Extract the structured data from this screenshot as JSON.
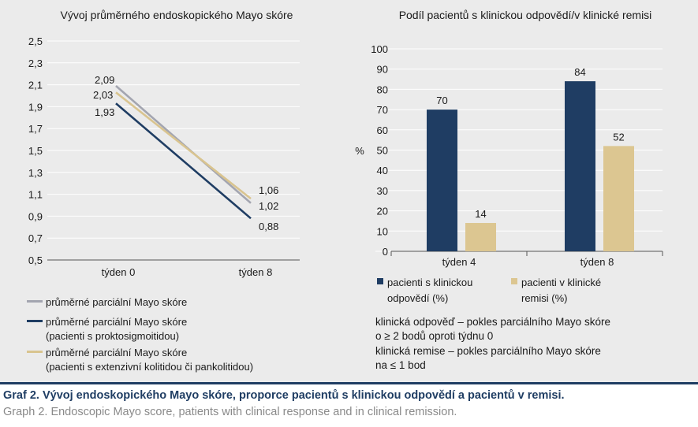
{
  "chart_data": [
    {
      "type": "line",
      "title": "Vývoj průměrného endoskopického Mayo skóre",
      "categories": [
        "týden 0",
        "týden 8"
      ],
      "ylim": [
        0.5,
        2.5
      ],
      "yticks": [
        "0,5",
        "0,7",
        "0,9",
        "1,1",
        "1,3",
        "1,5",
        "1,7",
        "1,9",
        "2,1",
        "2,3",
        "2,5"
      ],
      "series": [
        {
          "name": "průměrné parciální Mayo skóre",
          "values": [
            2.09,
            1.02
          ],
          "labels": [
            "2,09",
            "1,02"
          ],
          "color": "#a3a5b0"
        },
        {
          "name": "průměrné parciální Mayo skóre",
          "name2": "(pacienti s proktosigmoitidou)",
          "values": [
            1.93,
            0.88
          ],
          "labels": [
            "1,93",
            "0,88"
          ],
          "color": "#1f3d63"
        },
        {
          "name": "průměrné parciální Mayo skóre",
          "name2": "(pacienti s extenzivní kolitidou či pankolitidou)",
          "values": [
            2.03,
            1.06
          ],
          "labels": [
            "2,03",
            "1,06"
          ],
          "color": "#d9c48f"
        }
      ],
      "grid": true
    },
    {
      "type": "bar",
      "title": "Podíl pacientů s klinickou odpovědí/v klinické remisi",
      "ylabel": "%",
      "categories": [
        "týden 4",
        "týden 8"
      ],
      "ylim": [
        0,
        100
      ],
      "yticks": [
        "0",
        "10",
        "20",
        "30",
        "40",
        "50",
        "60",
        "70",
        "80",
        "90",
        "100"
      ],
      "series": [
        {
          "name": "pacienti s klinickou",
          "name2": "odpovědí (%)",
          "values": [
            70,
            84
          ],
          "labels": [
            "70",
            "84"
          ],
          "color": "#1f3d63"
        },
        {
          "name": "pacienti v klinické",
          "name2": "remisi (%)",
          "values": [
            14,
            52
          ],
          "labels": [
            "14",
            "52"
          ],
          "color": "#dcc691"
        }
      ],
      "grid": true
    }
  ],
  "notes": [
    "klinická odpověď – pokles parciálního Mayo skóre",
    "o ≥ 2 bodů oproti týdnu 0",
    "klinická remise – pokles parciálního Mayo skóre",
    "na ≤ 1 bod"
  ],
  "caption": {
    "cz": "Graf 2. Vývoj endoskopického Mayo skóre, proporce pacientů s klinickou odpovědí a pacientů v remisi.",
    "en": "Graph 2. Endoscopic Mayo score, patients with clinical response and in clinical remission."
  }
}
